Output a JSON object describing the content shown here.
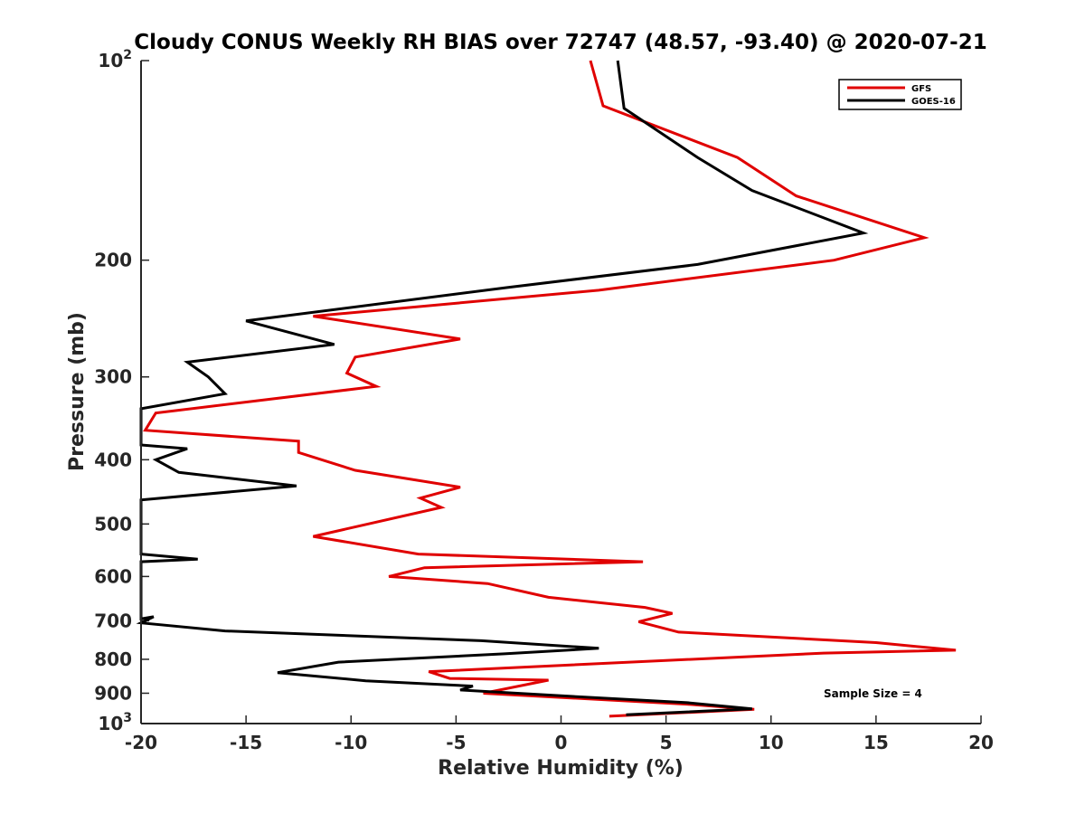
{
  "chart_data": {
    "type": "line",
    "title": "Cloudy CONUS Weekly RH BIAS over 72747 (48.57, -93.40) @ 2020-07-21",
    "xlabel": "Relative Humidity (%)",
    "ylabel": "Pressure (mb)",
    "xlim": [
      -20,
      20
    ],
    "ylim": [
      100,
      1000
    ],
    "y_scale": "log",
    "y_reversed": true,
    "x_ticks": [
      -20,
      -15,
      -10,
      -5,
      0,
      5,
      10,
      15,
      20
    ],
    "x_tick_labels": [
      "-20",
      "-15",
      "-10",
      "-5",
      "0",
      "5",
      "10",
      "15",
      "20"
    ],
    "y_ticks": [
      100,
      200,
      300,
      400,
      500,
      600,
      700,
      800,
      900,
      1000
    ],
    "y_tick_labels": [
      {
        "base": "10",
        "exp": "2"
      },
      {
        "base": "200",
        "exp": ""
      },
      {
        "base": "300",
        "exp": ""
      },
      {
        "base": "400",
        "exp": ""
      },
      {
        "base": "500",
        "exp": ""
      },
      {
        "base": "600",
        "exp": ""
      },
      {
        "base": "700",
        "exp": ""
      },
      {
        "base": "800",
        "exp": ""
      },
      {
        "base": "900",
        "exp": ""
      },
      {
        "base": "10",
        "exp": "3"
      }
    ],
    "legend_position": "top-right",
    "annotation": "Sample Size = 4",
    "series": [
      {
        "name": "GFS",
        "color": "#e00000",
        "points": [
          [
            1.4,
            100
          ],
          [
            2.0,
            117
          ],
          [
            8.4,
            140
          ],
          [
            11.2,
            160
          ],
          [
            17.3,
            185
          ],
          [
            13.0,
            200
          ],
          [
            1.8,
            222
          ],
          [
            -11.8,
            243
          ],
          [
            -4.8,
            263
          ],
          [
            -9.8,
            280
          ],
          [
            -10.2,
            296
          ],
          [
            -8.8,
            310
          ],
          [
            -19.3,
            340
          ],
          [
            -19.8,
            361
          ],
          [
            -12.5,
            375
          ],
          [
            -12.5,
            390
          ],
          [
            -9.8,
            415
          ],
          [
            -4.8,
            440
          ],
          [
            -6.7,
            457
          ],
          [
            -5.7,
            472
          ],
          [
            -11.8,
            522
          ],
          [
            -6.8,
            555
          ],
          [
            3.9,
            570
          ],
          [
            -6.5,
            582
          ],
          [
            -8.2,
            600
          ],
          [
            -3.5,
            615
          ],
          [
            -0.6,
            645
          ],
          [
            4.0,
            668
          ],
          [
            5.3,
            682
          ],
          [
            3.7,
            702
          ],
          [
            5.6,
            728
          ],
          [
            15.0,
            755
          ],
          [
            18.8,
            775
          ],
          [
            12.5,
            783
          ],
          [
            -6.3,
            835
          ],
          [
            -5.3,
            855
          ],
          [
            -0.6,
            860
          ],
          [
            -3.7,
            900
          ],
          [
            6.0,
            935
          ],
          [
            9.2,
            952
          ],
          [
            2.3,
            975
          ]
        ]
      },
      {
        "name": "GOES-16",
        "color": "#000000",
        "points": [
          [
            2.7,
            100
          ],
          [
            3.0,
            118
          ],
          [
            6.5,
            140
          ],
          [
            9.1,
            157
          ],
          [
            14.4,
            182
          ],
          [
            6.5,
            203
          ],
          [
            -2.6,
            220
          ],
          [
            -15.0,
            247
          ],
          [
            -10.8,
            268
          ],
          [
            -17.8,
            285
          ],
          [
            -16.8,
            300
          ],
          [
            -16.0,
            318
          ],
          [
            -20.0,
            335
          ],
          [
            -20.0,
            380
          ],
          [
            -17.8,
            385
          ],
          [
            -19.3,
            400
          ],
          [
            -18.2,
            418
          ],
          [
            -12.6,
            438
          ],
          [
            -20.0,
            460
          ],
          [
            -20.0,
            555
          ],
          [
            -17.3,
            565
          ],
          [
            -20.0,
            570
          ],
          [
            -20.0,
            695
          ],
          [
            -19.4,
            690
          ],
          [
            -20.0,
            705
          ],
          [
            -16.0,
            725
          ],
          [
            -3.8,
            750
          ],
          [
            1.8,
            770
          ],
          [
            -2.7,
            785
          ],
          [
            -10.6,
            808
          ],
          [
            -13.5,
            838
          ],
          [
            -9.3,
            862
          ],
          [
            -4.2,
            878
          ],
          [
            -4.8,
            890
          ],
          [
            0.0,
            908
          ],
          [
            6.0,
            930
          ],
          [
            9.1,
            950
          ],
          [
            3.1,
            970
          ]
        ]
      }
    ]
  }
}
